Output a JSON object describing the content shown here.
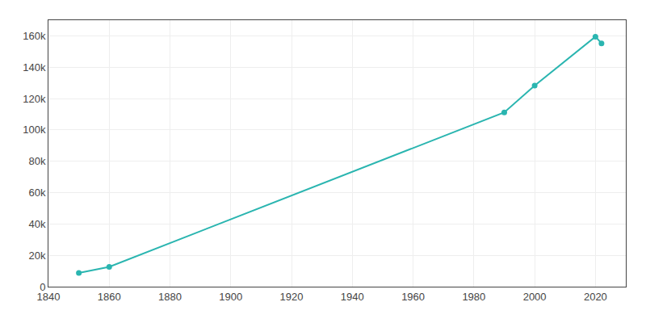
{
  "chart_data": {
    "type": "line",
    "x": [
      1850,
      1860,
      1990,
      2000,
      2020,
      2022
    ],
    "values": [
      8734,
      12652,
      111183,
      128283,
      159467,
      155230
    ],
    "color": "#2ab5b0",
    "marker": "circle",
    "xlim": [
      1840,
      2030
    ],
    "xticks": [
      1840,
      1860,
      1880,
      1900,
      1920,
      1940,
      1960,
      1980,
      2000,
      2020
    ],
    "ylim": [
      0,
      170000
    ],
    "yticks": [
      0,
      {
        "value": 20000,
        "label": "20k"
      },
      {
        "value": 40000,
        "label": "40k"
      },
      {
        "value": 60000,
        "label": "60k"
      },
      {
        "value": 80000,
        "label": "80k"
      },
      {
        "value": 100000,
        "label": "100k"
      },
      {
        "value": 120000,
        "label": "120k"
      },
      {
        "value": 140000,
        "label": "140k"
      },
      {
        "value": 160000,
        "label": "160k"
      }
    ],
    "grid": true
  }
}
